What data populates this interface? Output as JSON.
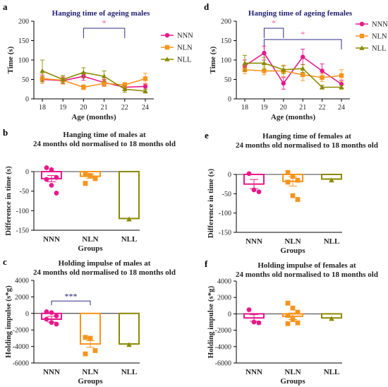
{
  "colors": {
    "NNN": "#e8188a",
    "NLN": "#f7941d",
    "NLL": "#8a8a00",
    "sig": "#2e2e8a",
    "star": "#f46fae"
  },
  "chart_data": [
    {
      "id": "a",
      "panel_letter": "a",
      "type": "line",
      "title": "Hanging time of ageing males",
      "xlabel": "Age (months)",
      "ylabel": "Time (s)",
      "categories": [
        "18",
        "19",
        "20",
        "21",
        "22",
        "24"
      ],
      "ylim": [
        0,
        200
      ],
      "yticks": [
        "0",
        "50",
        "100",
        "150",
        "200"
      ],
      "series": [
        {
          "name": "NNN",
          "marker": "circle",
          "values": [
            50,
            47,
            58,
            42,
            30,
            32
          ],
          "err": [
            10,
            8,
            10,
            8,
            8,
            7
          ]
        },
        {
          "name": "NLN",
          "marker": "square",
          "values": [
            52,
            48,
            30,
            40,
            36,
            52
          ],
          "err": [
            12,
            10,
            6,
            8,
            6,
            14
          ]
        },
        {
          "name": "NLL",
          "marker": "triangle",
          "values": [
            72,
            50,
            68,
            58,
            25,
            20
          ],
          "err": [
            28,
            10,
            12,
            14,
            8,
            5
          ]
        }
      ],
      "annotations": [
        {
          "from": "20",
          "to": "22",
          "label": "*"
        }
      ]
    },
    {
      "id": "d",
      "panel_letter": "d",
      "type": "line",
      "title": "Hanging time of ageing females",
      "xlabel": "Age (months)",
      "ylabel": "Time (s)",
      "categories": [
        "18",
        "19",
        "20",
        "21",
        "22",
        "24"
      ],
      "ylim": [
        0,
        200
      ],
      "yticks": [
        "0",
        "50",
        "100",
        "150",
        "200"
      ],
      "series": [
        {
          "name": "NNN",
          "marker": "circle",
          "values": [
            85,
            118,
            40,
            108,
            72,
            38
          ],
          "err": [
            15,
            18,
            15,
            20,
            18,
            10
          ]
        },
        {
          "name": "NLN",
          "marker": "square",
          "values": [
            75,
            72,
            72,
            62,
            55,
            60
          ],
          "err": [
            10,
            10,
            15,
            15,
            10,
            15
          ]
        },
        {
          "name": "NLL",
          "marker": "triangle",
          "values": [
            92,
            92,
            75,
            78,
            30,
            30
          ],
          "err": [
            20,
            15,
            10,
            10,
            5,
            5
          ]
        }
      ],
      "annotations": [
        {
          "from": "19",
          "to": "20",
          "label": "*"
        },
        {
          "from": "19",
          "to": "24",
          "label": "*"
        }
      ]
    },
    {
      "id": "b",
      "panel_letter": "b",
      "type": "bar",
      "title": [
        "Hanging time of males at",
        "24 months old normalised to 18 months old"
      ],
      "xlabel": "Groups",
      "ylabel": "Difference in time (s)",
      "categories": [
        "NNN",
        "NLN",
        "NLL"
      ],
      "ylim": [
        -150,
        0
      ],
      "yticks": [
        "0",
        "-50",
        "-100",
        "-150"
      ],
      "values": [
        -18,
        -12,
        -120
      ],
      "err": [
        8,
        5,
        0
      ],
      "points": [
        [
          10,
          5,
          -15,
          -20,
          -35,
          -55
        ],
        [
          -5,
          -10,
          -18,
          -30
        ],
        [
          -122
        ]
      ]
    },
    {
      "id": "e",
      "panel_letter": "e",
      "type": "bar",
      "title": [
        "Hanging time of females at",
        "24 months old normalised to 18 months old"
      ],
      "xlabel": "Groups",
      "ylabel": "Difference in time (s)",
      "categories": [
        "NNN",
        "NLN",
        "NLL"
      ],
      "ylim": [
        -150,
        0
      ],
      "yticks": [
        "0",
        "-50",
        "-100",
        "-150"
      ],
      "values": [
        -25,
        -18,
        -12
      ],
      "err": [
        12,
        12,
        0
      ],
      "points": [
        [
          2,
          -40,
          -45
        ],
        [
          5,
          -5,
          -15,
          -20,
          -55,
          -65
        ],
        [
          -15
        ]
      ]
    },
    {
      "id": "c",
      "panel_letter": "c",
      "type": "bar",
      "title": [
        "Holding impulse of males at",
        "24 months old normalised to 18 months old"
      ],
      "xlabel": "Groups",
      "ylabel": "Holding impulse (s*g)",
      "categories": [
        "NNN",
        "NLN",
        "NLL"
      ],
      "ylim": [
        -6000,
        4000
      ],
      "yticks": [
        "4000",
        "2000",
        "0",
        "-2000",
        "-4000",
        "-6000"
      ],
      "values": [
        -700,
        -3700,
        -3700
      ],
      "err": [
        350,
        400,
        0
      ],
      "points": [
        [
          200,
          100,
          -300,
          -700,
          -1100,
          -1300
        ],
        [
          -2900,
          -3000,
          -4500,
          -4900
        ],
        [
          -3800
        ]
      ],
      "annotations": [
        {
          "from": "NNN",
          "to": "NLN",
          "label": "***"
        }
      ]
    },
    {
      "id": "f",
      "panel_letter": "f",
      "type": "bar",
      "title": [
        "Holding impulse of females at",
        "24 months old normalised to 18 months old"
      ],
      "xlabel": "Groups",
      "ylabel": "Holding impulse (s*g)",
      "categories": [
        "NNN",
        "NLN",
        "NLL"
      ],
      "ylim": [
        -6000,
        4000
      ],
      "yticks": [
        "4000",
        "2000",
        "0",
        "-2000",
        "-4000",
        "-6000"
      ],
      "values": [
        -500,
        -300,
        -500
      ],
      "err": [
        400,
        400,
        0
      ],
      "points": [
        [
          500,
          -1000,
          -1100
        ],
        [
          1300,
          700,
          200,
          -200,
          -700,
          -1100,
          -1200
        ],
        [
          -600
        ]
      ]
    }
  ]
}
